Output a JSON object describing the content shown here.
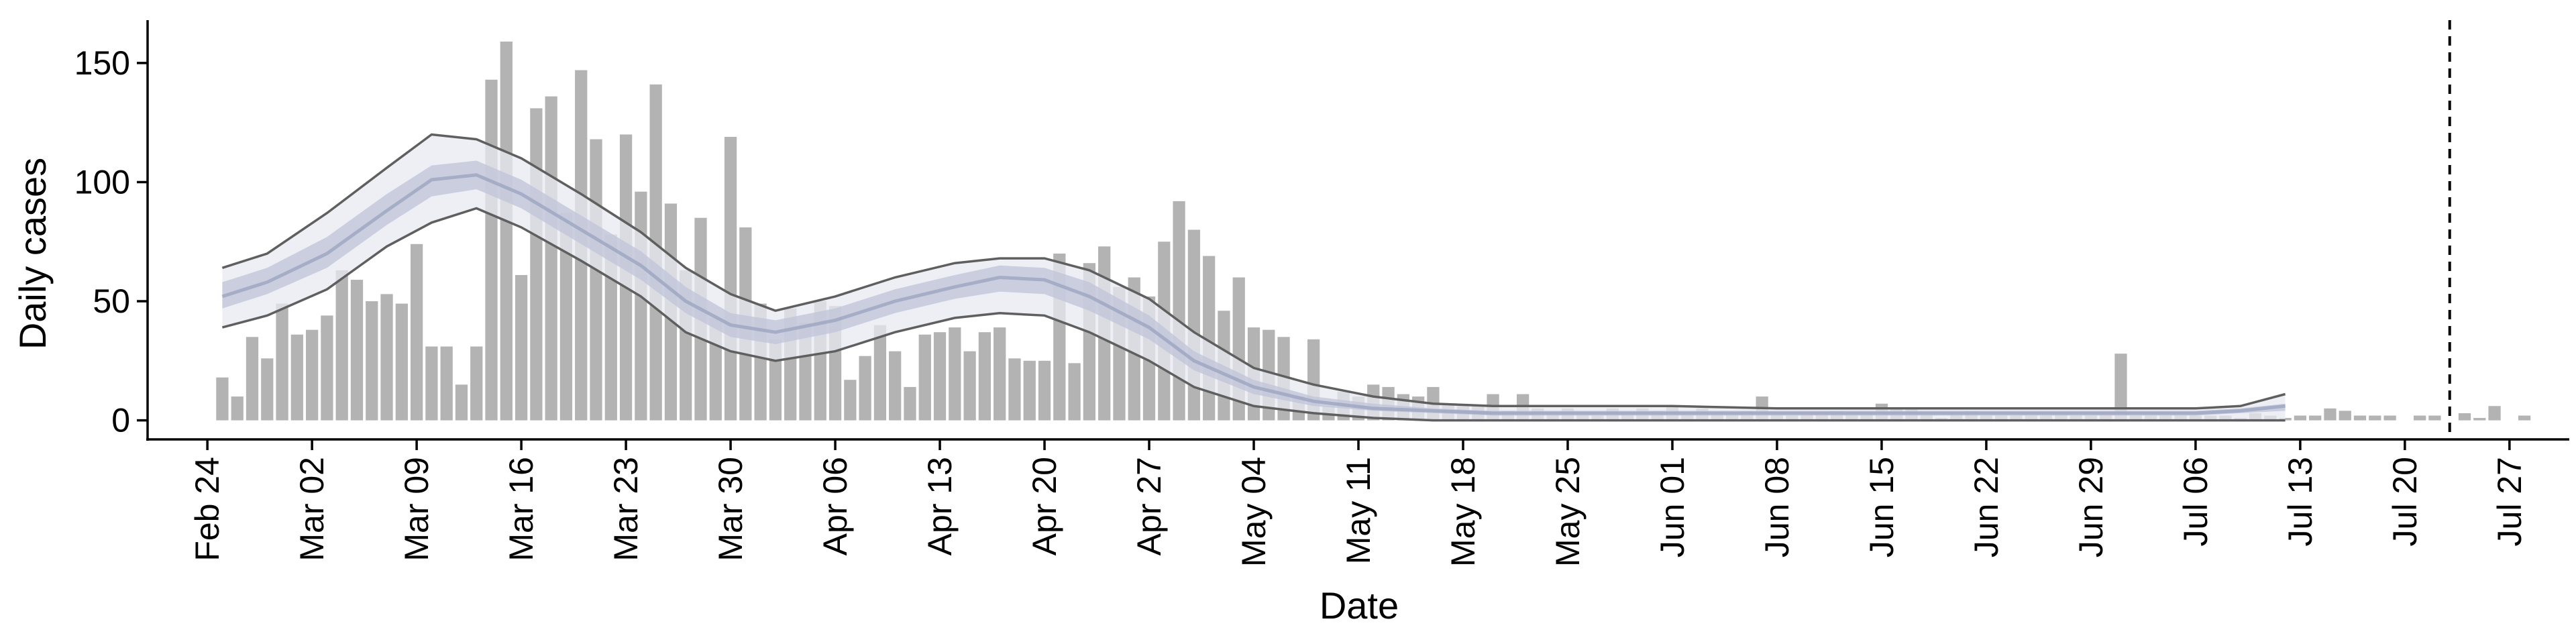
{
  "chart_data": {
    "type": "bar",
    "title": "",
    "xlabel": "Date",
    "ylabel": "Daily cases",
    "ylim": [
      -8,
      168
    ],
    "yticks": [
      0,
      50,
      100,
      150
    ],
    "x_start": "2020-02-20",
    "x_end": "2020-07-31",
    "xticks": [
      "Feb 24",
      "Mar 02",
      "Mar 09",
      "Mar 16",
      "Mar 23",
      "Mar 30",
      "Apr 06",
      "Apr 13",
      "Apr 20",
      "Apr 27",
      "May 04",
      "May 11",
      "May 18",
      "May 25",
      "Jun 01",
      "Jun 08",
      "Jun 15",
      "Jun 22",
      "Jun 29",
      "Jul 06",
      "Jul 13",
      "Jul 20",
      "Jul 27"
    ],
    "xtick_dates": [
      "2020-02-24",
      "2020-03-02",
      "2020-03-09",
      "2020-03-16",
      "2020-03-23",
      "2020-03-30",
      "2020-04-06",
      "2020-04-13",
      "2020-04-20",
      "2020-04-27",
      "2020-05-04",
      "2020-05-11",
      "2020-05-18",
      "2020-05-25",
      "2020-06-01",
      "2020-06-08",
      "2020-06-15",
      "2020-06-22",
      "2020-06-29",
      "2020-07-06",
      "2020-07-13",
      "2020-07-20",
      "2020-07-27"
    ],
    "bar_start_date": "2020-02-25",
    "daily_cases": [
      18,
      10,
      35,
      26,
      49,
      36,
      38,
      44,
      63,
      59,
      50,
      53,
      49,
      74,
      31,
      31,
      15,
      31,
      143,
      159,
      61,
      131,
      136,
      87,
      147,
      118,
      78,
      120,
      96,
      141,
      91,
      63,
      85,
      43,
      119,
      81,
      49,
      34,
      47,
      41,
      50,
      48,
      17,
      27,
      40,
      29,
      14,
      36,
      37,
      39,
      29,
      37,
      39,
      26,
      25,
      25,
      70,
      24,
      66,
      73,
      56,
      60,
      52,
      75,
      92,
      80,
      69,
      46,
      60,
      39,
      38,
      35,
      10,
      34,
      6,
      12,
      10,
      15,
      14,
      11,
      10,
      14,
      7,
      6,
      6,
      11,
      4,
      11,
      5,
      3,
      5,
      3,
      2,
      5,
      3,
      5,
      4,
      6,
      3,
      5,
      3,
      3,
      4,
      10,
      3,
      2,
      3,
      3,
      4,
      3,
      3,
      7,
      5,
      5,
      3,
      1,
      3,
      4,
      2,
      2,
      2,
      2,
      2,
      3,
      2,
      2,
      3,
      28,
      2,
      2,
      2,
      2,
      2,
      2,
      2,
      1,
      3,
      2,
      1,
      2,
      2,
      5,
      4,
      2,
      2,
      2,
      0,
      2,
      2,
      0,
      3,
      1,
      6,
      0,
      2
    ],
    "estimate_band": {
      "dates": [
        "2020-02-25",
        "2020-02-28",
        "2020-03-03",
        "2020-03-07",
        "2020-03-10",
        "2020-03-13",
        "2020-03-16",
        "2020-03-20",
        "2020-03-24",
        "2020-03-27",
        "2020-03-30",
        "2020-04-02",
        "2020-04-06",
        "2020-04-10",
        "2020-04-14",
        "2020-04-17",
        "2020-04-20",
        "2020-04-23",
        "2020-04-27",
        "2020-04-30",
        "2020-05-04",
        "2020-05-08",
        "2020-05-12",
        "2020-05-16",
        "2020-05-20",
        "2020-05-25",
        "2020-06-01",
        "2020-06-08",
        "2020-06-15",
        "2020-06-22",
        "2020-06-29",
        "2020-07-06",
        "2020-07-09",
        "2020-07-12"
      ],
      "median": [
        52,
        58,
        70,
        88,
        101,
        103,
        95,
        80,
        65,
        50,
        40,
        37,
        42,
        50,
        56,
        60,
        59,
        52,
        39,
        25,
        14,
        8,
        5,
        4,
        3,
        3,
        3,
        3,
        3,
        3,
        3,
        3,
        4,
        6
      ],
      "inner_lower": [
        47,
        53,
        64,
        82,
        94,
        97,
        89,
        74,
        59,
        45,
        35,
        32,
        37,
        45,
        51,
        54,
        53,
        46,
        34,
        21,
        11,
        6,
        4,
        3,
        2,
        2,
        2,
        2,
        2,
        2,
        2,
        2,
        3,
        4
      ],
      "inner_upper": [
        58,
        64,
        77,
        95,
        107,
        109,
        101,
        86,
        71,
        56,
        45,
        42,
        47,
        55,
        61,
        65,
        64,
        58,
        44,
        29,
        17,
        10,
        7,
        5,
        4,
        4,
        4,
        4,
        4,
        4,
        4,
        4,
        5,
        7
      ],
      "outer_lower": [
        39,
        44,
        55,
        73,
        83,
        89,
        81,
        67,
        52,
        37,
        29,
        25,
        29,
        37,
        43,
        45,
        44,
        37,
        25,
        14,
        6,
        3,
        1,
        0,
        0,
        0,
        0,
        0,
        0,
        0,
        0,
        0,
        0,
        0
      ],
      "outer_upper": [
        64,
        70,
        87,
        106,
        120,
        118,
        110,
        95,
        79,
        64,
        53,
        46,
        52,
        60,
        66,
        68,
        68,
        63,
        51,
        37,
        22,
        15,
        10,
        7,
        6,
        6,
        6,
        5,
        5,
        5,
        5,
        5,
        6,
        11
      ]
    },
    "reference_line_date": "2020-07-23",
    "colors": {
      "bars": "#b3b3b3",
      "outer_band": "#e8eaf1",
      "inner_band": "#c0c6da",
      "median": "#8e98b7",
      "bound_lines": "#5f5f5f",
      "axis": "#000000"
    },
    "grid": false,
    "legend": "none"
  }
}
